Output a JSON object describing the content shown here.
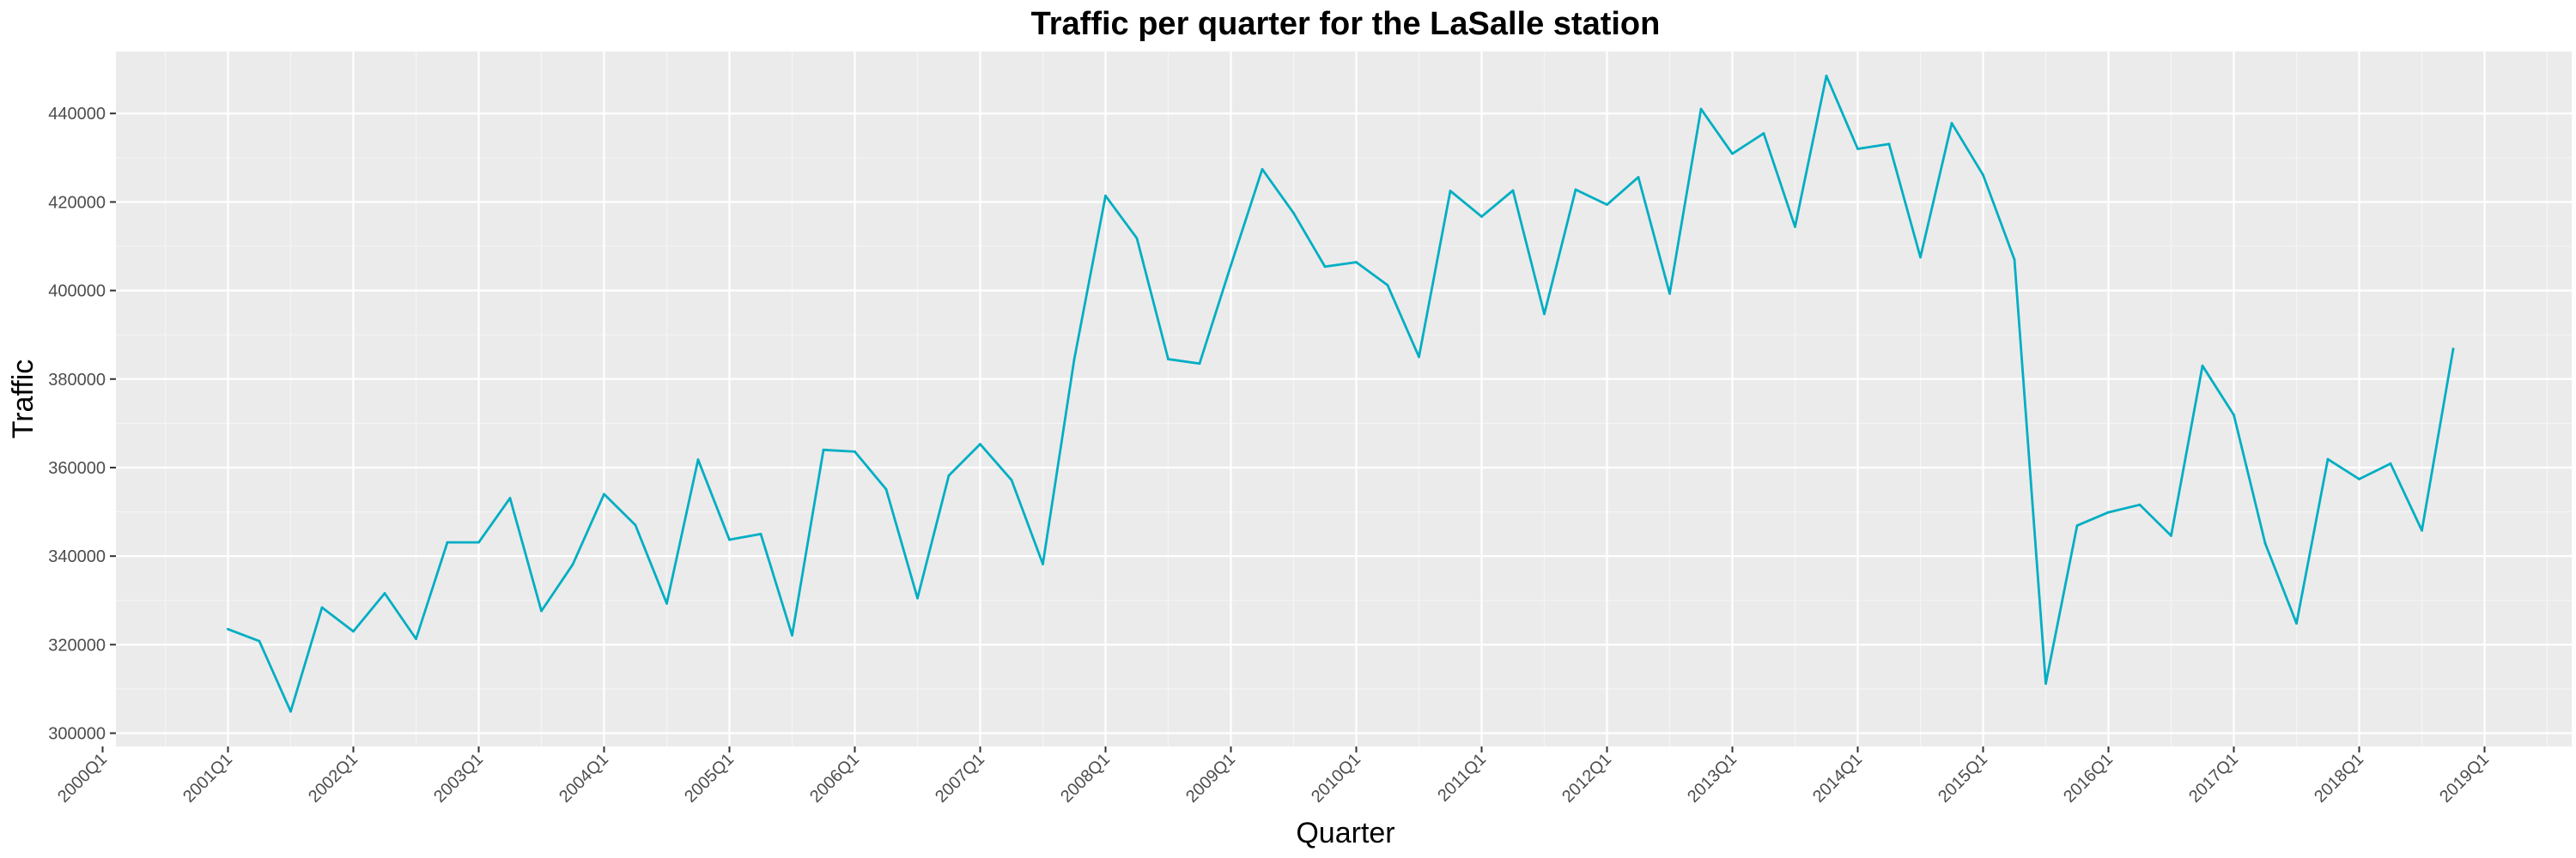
{
  "chart_data": {
    "type": "line",
    "title": "Traffic per quarter for the LaSalle station",
    "xlabel": "Quarter",
    "ylabel": "Traffic",
    "ylim": [
      297000,
      454000
    ],
    "grid": true,
    "legend": "none",
    "colors": {
      "line": "#00AEC3",
      "panel": "#EBEBEB",
      "grid_major": "#FFFFFF",
      "grid_minor": "#F5F5F5",
      "tick_text": "#4D4D4D"
    },
    "y_ticks": [
      300000,
      320000,
      340000,
      360000,
      380000,
      400000,
      420000,
      440000
    ],
    "y_tick_labels": [
      "300000",
      "320000",
      "340000",
      "360000",
      "380000",
      "400000",
      "420000",
      "440000"
    ],
    "x_ticks": [
      "2000Q1",
      "2001Q1",
      "2002Q1",
      "2003Q1",
      "2004Q1",
      "2005Q1",
      "2006Q1",
      "2007Q1",
      "2008Q1",
      "2009Q1",
      "2010Q1",
      "2011Q1",
      "2012Q1",
      "2013Q1",
      "2014Q1",
      "2015Q1",
      "2016Q1",
      "2017Q1",
      "2018Q1",
      "2019Q1"
    ],
    "x": [
      "2001Q1",
      "2001Q2",
      "2001Q3",
      "2001Q4",
      "2002Q1",
      "2002Q2",
      "2002Q3",
      "2002Q4",
      "2003Q1",
      "2003Q2",
      "2003Q3",
      "2003Q4",
      "2004Q1",
      "2004Q2",
      "2004Q3",
      "2004Q4",
      "2005Q1",
      "2005Q2",
      "2005Q3",
      "2005Q4",
      "2006Q1",
      "2006Q2",
      "2006Q3",
      "2006Q4",
      "2007Q1",
      "2007Q2",
      "2007Q3",
      "2007Q4",
      "2008Q1",
      "2008Q2",
      "2008Q3",
      "2008Q4",
      "2009Q1",
      "2009Q2",
      "2009Q3",
      "2009Q4",
      "2010Q1",
      "2010Q2",
      "2010Q3",
      "2010Q4",
      "2011Q1",
      "2011Q2",
      "2011Q3",
      "2011Q4",
      "2012Q1",
      "2012Q2",
      "2012Q3",
      "2012Q4",
      "2013Q1",
      "2013Q2",
      "2013Q3",
      "2013Q4",
      "2014Q1",
      "2014Q2",
      "2014Q3",
      "2014Q4",
      "2015Q1",
      "2015Q2",
      "2015Q3",
      "2015Q4",
      "2016Q1",
      "2016Q2",
      "2016Q3",
      "2016Q4",
      "2017Q1",
      "2017Q2",
      "2017Q3",
      "2017Q4",
      "2018Q1",
      "2018Q2",
      "2018Q3",
      "2018Q4"
    ],
    "series": [
      {
        "values": [
          323500,
          320800,
          304900,
          328400,
          323000,
          331600,
          321300,
          343100,
          343100,
          353100,
          327600,
          338100,
          354000,
          347000,
          329300,
          361800,
          343700,
          345000,
          322100,
          364000,
          363600,
          355100,
          330500,
          358200,
          365300,
          357200,
          338200,
          384400,
          421400,
          411800,
          384500,
          383500,
          405700,
          427400,
          417500,
          405400,
          406400,
          401200,
          385000,
          422500,
          416700,
          422600,
          394700,
          422800,
          419400,
          425600,
          399300,
          441000,
          430900,
          435500,
          414400,
          448500,
          432000,
          433100,
          407500,
          437800,
          426100,
          407000,
          311200,
          346900,
          349900,
          351600,
          344600,
          383000,
          371900,
          342900,
          324800,
          361900,
          357400,
          360900,
          345800,
          386800
        ]
      }
    ]
  }
}
